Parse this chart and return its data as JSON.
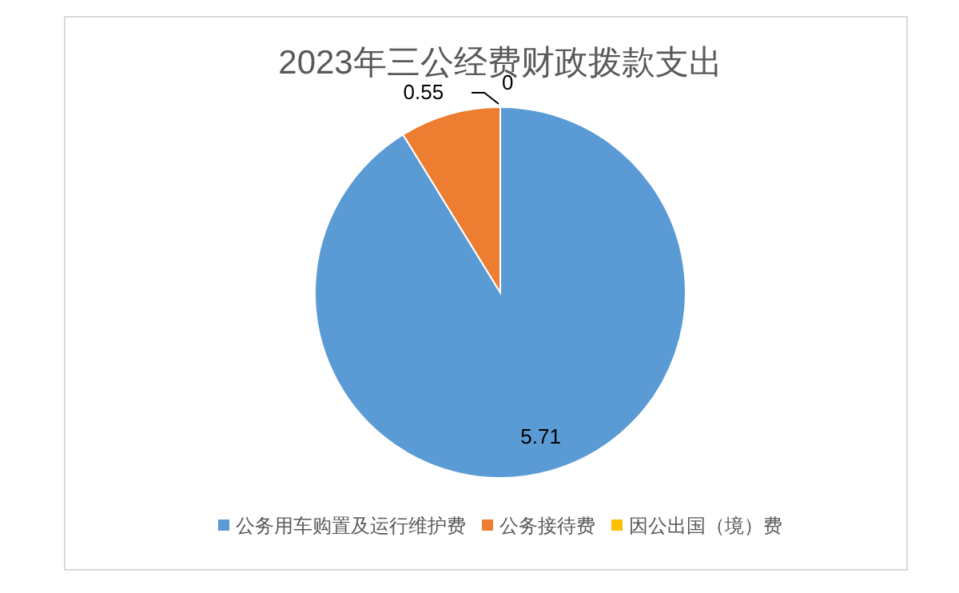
{
  "chart_data": {
    "type": "pie",
    "title": "2023年三公经费财政拨款支出",
    "categories": [
      "公务用车购置及运行维护费",
      "公务接待费",
      "因公出国（境）费"
    ],
    "values": [
      5.71,
      0.55,
      0
    ],
    "value_labels": [
      "5.71",
      "0.55",
      "0"
    ],
    "colors": [
      "#5b9bd5",
      "#ed7d31",
      "#ffc000"
    ],
    "legend": "bottom"
  }
}
